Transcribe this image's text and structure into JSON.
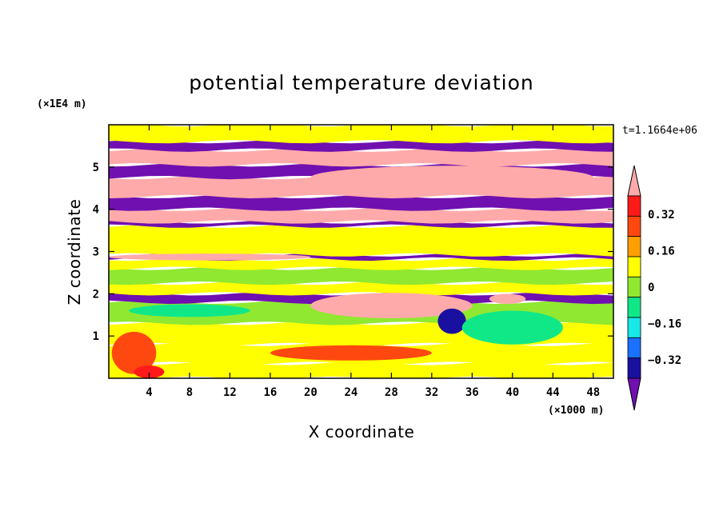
{
  "chart_data": {
    "type": "heatmap",
    "title": "potential temperature deviation",
    "xlabel": "X coordinate",
    "ylabel": "Z coordinate",
    "x_unit": "(×1000 m)",
    "y_unit": "(×1E4 m)",
    "time_label": "t=1.1664e+06",
    "xlim": [
      0,
      50
    ],
    "ylim": [
      0,
      6
    ],
    "x_ticks": [
      4,
      8,
      12,
      16,
      20,
      24,
      28,
      32,
      36,
      40,
      44,
      48
    ],
    "y_ticks": [
      1,
      2,
      3,
      4,
      5
    ],
    "colorbar": {
      "levels": [
        -0.4,
        -0.32,
        -0.24,
        -0.16,
        -0.08,
        0,
        0.08,
        0.16,
        0.24,
        0.32,
        0.4
      ],
      "labeled_levels": [
        0.32,
        0.16,
        0,
        -0.16,
        -0.32
      ],
      "labels": [
        "0.32",
        "0.16",
        "0",
        "−0.16",
        "−0.32"
      ],
      "colors": [
        "#7010b0",
        "#1a10a0",
        "#1a70ff",
        "#18e8e8",
        "#10e888",
        "#90e830",
        "#ffff00",
        "#ffa000",
        "#ff4810",
        "#ff1a1a",
        "#ffaaaa"
      ]
    },
    "bands": [
      {
        "z": [
          0.0,
          0.35
        ],
        "value": 0.05
      },
      {
        "z": [
          0.35,
          0.8
        ],
        "value": 0.02
      },
      {
        "z": [
          0.8,
          1.3
        ],
        "value": 0.06
      },
      {
        "z": [
          1.3,
          1.8
        ],
        "value": -0.08
      },
      {
        "z": [
          1.8,
          2.0
        ],
        "value": -0.42
      },
      {
        "z": [
          2.0,
          2.25
        ],
        "value": 0.03
      },
      {
        "z": [
          2.25,
          2.6
        ],
        "value": -0.06
      },
      {
        "z": [
          2.6,
          2.82
        ],
        "value": 0.05
      },
      {
        "z": [
          2.82,
          2.92
        ],
        "value": -0.42
      },
      {
        "z": [
          2.92,
          3.6
        ],
        "value": 0.04
      },
      {
        "z": [
          3.6,
          3.7
        ],
        "value": -0.42
      },
      {
        "z": [
          3.7,
          4.0
        ],
        "value": 0.45
      },
      {
        "z": [
          4.0,
          4.3
        ],
        "value": -0.42
      },
      {
        "z": [
          4.3,
          4.75
        ],
        "value": 0.45
      },
      {
        "z": [
          4.75,
          5.05
        ],
        "value": -0.42
      },
      {
        "z": [
          5.05,
          5.4
        ],
        "value": 0.45
      },
      {
        "z": [
          5.4,
          5.6
        ],
        "value": -0.42
      },
      {
        "z": [
          5.6,
          6.0
        ],
        "value": 0.05
      }
    ],
    "features": [
      {
        "type": "pink-blob",
        "cx": 28,
        "cz": 1.72,
        "rx": 8,
        "rz": 0.3,
        "value": 0.45
      },
      {
        "type": "pink-blob",
        "cx": 39.5,
        "cz": 1.88,
        "rx": 1.8,
        "rz": 0.12,
        "value": 0.45
      },
      {
        "type": "pink-blob",
        "cx": 34,
        "cz": 4.75,
        "rx": 14,
        "rz": 0.28,
        "value": 0.45
      },
      {
        "type": "yellow-patch",
        "cx": 2.5,
        "cz": 0.6,
        "rx": 2.2,
        "rz": 0.5,
        "value": 0.2
      },
      {
        "type": "yellow-patch",
        "cx": 24,
        "cz": 0.6,
        "rx": 8,
        "rz": 0.18,
        "value": 0.2
      },
      {
        "type": "orange-patch",
        "cx": 4.0,
        "cz": 0.15,
        "rx": 1.5,
        "rz": 0.15,
        "value": 0.28
      },
      {
        "type": "blue-patch",
        "cx": 34,
        "cz": 1.35,
        "rx": 1.4,
        "rz": 0.3,
        "value": -0.35
      },
      {
        "type": "cyan-patch",
        "cx": 40,
        "cz": 1.2,
        "rx": 5,
        "rz": 0.4,
        "value": -0.1
      },
      {
        "type": "cyan-patch",
        "cx": 8,
        "cz": 1.6,
        "rx": 6,
        "rz": 0.15,
        "value": -0.1
      },
      {
        "type": "pink-band",
        "cx": 10,
        "cz": 2.87,
        "rx": 10,
        "rz": 0.08,
        "value": 0.45
      }
    ]
  }
}
